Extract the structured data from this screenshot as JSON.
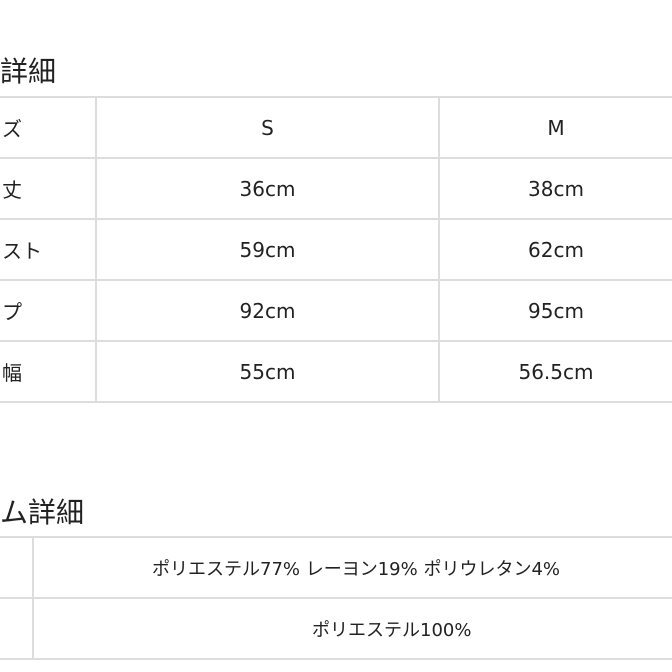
{
  "size_section": {
    "heading": "詳細",
    "header": {
      "label": "ズ",
      "cols": [
        "S",
        "M"
      ]
    },
    "rows": [
      {
        "label": "丈",
        "values": [
          "36cm",
          "38cm"
        ]
      },
      {
        "label": "スト",
        "values": [
          "59cm",
          "62cm"
        ]
      },
      {
        "label": "プ",
        "values": [
          "92cm",
          "95cm"
        ]
      },
      {
        "label": "幅",
        "values": [
          "55cm",
          "56.5cm"
        ]
      }
    ]
  },
  "material_section": {
    "heading": "ム詳細",
    "rows": [
      {
        "value": "ポリエステル77% レーヨン19% ポリウレタン4%"
      },
      {
        "value": "ポリエステル100%"
      }
    ]
  }
}
